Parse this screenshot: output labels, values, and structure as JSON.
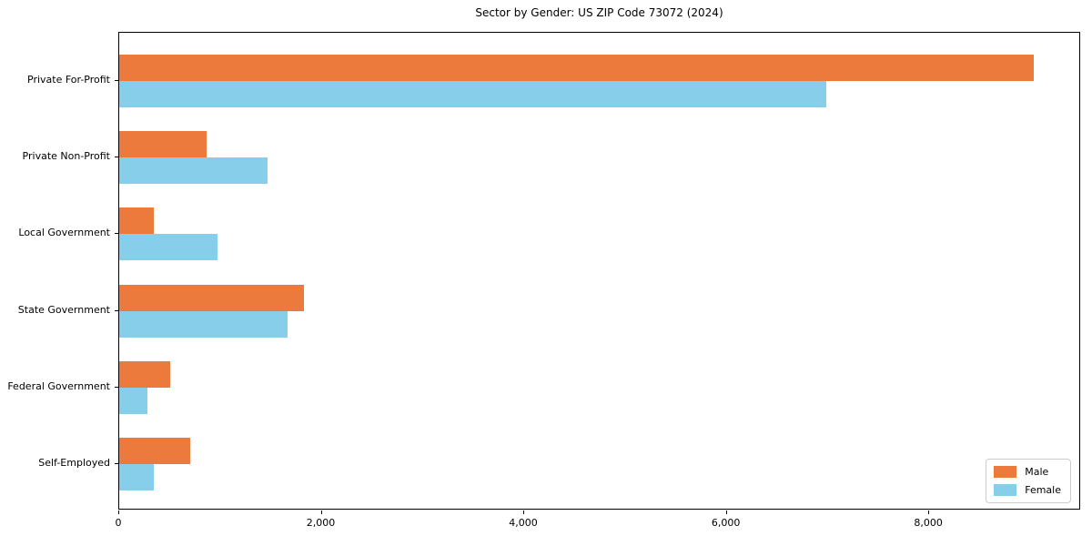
{
  "title": "Sector by Gender: US ZIP Code 73072 (2024)",
  "colors": {
    "male": "#EB7A3C",
    "female": "#87CEEB",
    "spine": "#000000",
    "background": "#ffffff",
    "legend_border": "#cccccc"
  },
  "legend": {
    "position": "lower right",
    "items": [
      "Male",
      "Female"
    ]
  },
  "chart_data": {
    "type": "bar",
    "orientation": "horizontal",
    "title": "Sector by Gender: US ZIP Code 73072 (2024)",
    "xlabel": "",
    "ylabel": "",
    "categories": [
      "Private For-Profit",
      "Private Non-Profit",
      "Local Government",
      "State Government",
      "Federal Government",
      "Self-Employed"
    ],
    "series": [
      {
        "name": "Male",
        "color": "#EB7A3C",
        "values": [
          9050,
          865,
          340,
          1830,
          500,
          700
        ]
      },
      {
        "name": "Female",
        "color": "#87CEEB",
        "values": [
          7000,
          1470,
          975,
          1670,
          280,
          340
        ]
      }
    ],
    "xlim": [
      0,
      9500
    ],
    "xticks": {
      "values": [
        0,
        2000,
        4000,
        6000,
        8000
      ],
      "labels": [
        "0",
        "2,000",
        "4,000",
        "6,000",
        "8,000"
      ]
    },
    "grid": false,
    "legend_position": "lower right"
  }
}
